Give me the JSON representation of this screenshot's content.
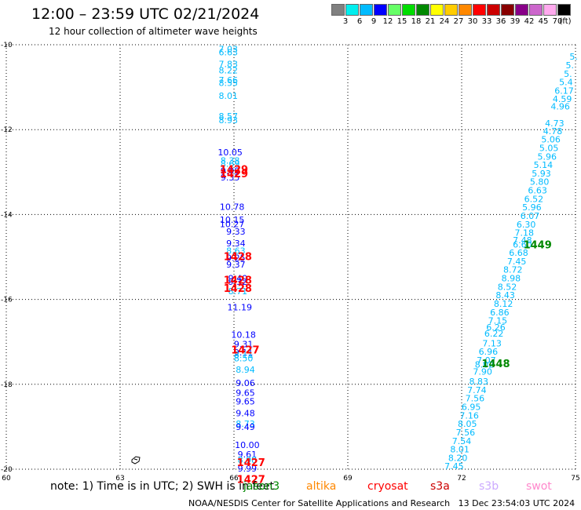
{
  "header": {
    "title": "12:00 – 23:59 UTC 02/21/2024",
    "subtitle": "12 hour collection of altimeter wave heights"
  },
  "color_scale": {
    "labels": [
      "3",
      "6",
      "9",
      "12",
      "15",
      "18",
      "21",
      "24",
      "27",
      "30",
      "33",
      "36",
      "39",
      "42",
      "45",
      "70",
      "(ft)"
    ],
    "colors": [
      "#808080",
      "#00eeee",
      "#00bbff",
      "#0000ff",
      "#66ff66",
      "#00dd00",
      "#008800",
      "#ffff00",
      "#ffcc00",
      "#ff8800",
      "#ff0000",
      "#cc0000",
      "#880000",
      "#880088",
      "#cc66cc",
      "#ffaaee",
      "#000000"
    ]
  },
  "map": {
    "lon_ticks": [
      "60",
      "63",
      "66",
      "69",
      "72",
      "75"
    ],
    "lat_ticks": [
      "-10",
      "-12",
      "-14",
      "-16",
      "-18",
      "-20"
    ],
    "grid_lines_visible": true
  },
  "track_west": [
    {
      "lat": -10.1,
      "lon": 65.85,
      "v": "7.03",
      "c": "#00bbff"
    },
    {
      "lat": -10.18,
      "lon": 65.85,
      "v": "6.63",
      "c": "#00bbff"
    },
    {
      "lat": -10.45,
      "lon": 65.85,
      "v": "7.83",
      "c": "#00bbff"
    },
    {
      "lat": -10.6,
      "lon": 65.85,
      "v": "8.22",
      "c": "#00bbff"
    },
    {
      "lat": -10.83,
      "lon": 65.85,
      "v": "7.66",
      "c": "#00bbff"
    },
    {
      "lat": -10.9,
      "lon": 65.85,
      "v": "8.55",
      "c": "#00bbff"
    },
    {
      "lat": -11.2,
      "lon": 65.85,
      "v": "8.01",
      "c": "#00bbff"
    },
    {
      "lat": -11.68,
      "lon": 65.85,
      "v": "8.57",
      "c": "#00bbff"
    },
    {
      "lat": -11.77,
      "lon": 65.85,
      "v": "8.93",
      "c": "#00bbff"
    },
    {
      "lat": -12.53,
      "lon": 65.9,
      "v": "10.05",
      "c": "#0000ff"
    },
    {
      "lat": -12.73,
      "lon": 65.9,
      "v": "8.38",
      "c": "#00bbff"
    },
    {
      "lat": -12.8,
      "lon": 65.9,
      "v": "8.69",
      "c": "#00bbff"
    },
    {
      "lat": -12.97,
      "lon": 65.9,
      "v": "9.09",
      "c": "#0000ff"
    },
    {
      "lat": -13.12,
      "lon": 65.9,
      "v": "9.35",
      "c": "#0000ff"
    },
    {
      "lat": -13.82,
      "lon": 65.95,
      "v": "10.78",
      "c": "#0000ff"
    },
    {
      "lat": -14.12,
      "lon": 65.95,
      "v": "10.15",
      "c": "#0000ff"
    },
    {
      "lat": -14.22,
      "lon": 65.95,
      "v": "10.27",
      "c": "#0000ff"
    },
    {
      "lat": -14.4,
      "lon": 66.05,
      "v": "9.33",
      "c": "#0000ff"
    },
    {
      "lat": -14.68,
      "lon": 66.05,
      "v": "9.34",
      "c": "#0000ff"
    },
    {
      "lat": -14.85,
      "lon": 66.05,
      "v": "8.63",
      "c": "#00bbff"
    },
    {
      "lat": -15.02,
      "lon": 66.05,
      "v": "9.25",
      "c": "#0000ff"
    },
    {
      "lat": -15.18,
      "lon": 66.05,
      "v": "9.37",
      "c": "#0000ff"
    },
    {
      "lat": -15.5,
      "lon": 66.1,
      "v": "9.40",
      "c": "#0000ff"
    },
    {
      "lat": -15.58,
      "lon": 66.1,
      "v": "9.32",
      "c": "#0000ff"
    },
    {
      "lat": -15.8,
      "lon": 66.1,
      "v": "8.71",
      "c": "#00bbff"
    },
    {
      "lat": -16.18,
      "lon": 66.15,
      "v": "11.19",
      "c": "#0000ff"
    },
    {
      "lat": -16.83,
      "lon": 66.25,
      "v": "10.18",
      "c": "#0000ff"
    },
    {
      "lat": -17.05,
      "lon": 66.25,
      "v": "9.31",
      "c": "#0000ff"
    },
    {
      "lat": -17.25,
      "lon": 66.25,
      "v": "9.11",
      "c": "#0000ff"
    },
    {
      "lat": -17.3,
      "lon": 66.25,
      "v": "8.11",
      "c": "#00bbff"
    },
    {
      "lat": -17.38,
      "lon": 66.25,
      "v": "8.50",
      "c": "#00bbff"
    },
    {
      "lat": -17.65,
      "lon": 66.3,
      "v": "8.94",
      "c": "#00bbff"
    },
    {
      "lat": -17.97,
      "lon": 66.3,
      "v": "9.06",
      "c": "#0000ff"
    },
    {
      "lat": -18.2,
      "lon": 66.3,
      "v": "9.65",
      "c": "#0000ff"
    },
    {
      "lat": -18.4,
      "lon": 66.3,
      "v": "9.65",
      "c": "#0000ff"
    },
    {
      "lat": -18.68,
      "lon": 66.3,
      "v": "9.48",
      "c": "#0000ff"
    },
    {
      "lat": -18.93,
      "lon": 66.3,
      "v": "8.73",
      "c": "#00bbff"
    },
    {
      "lat": -19.0,
      "lon": 66.3,
      "v": "9.49",
      "c": "#0000ff"
    },
    {
      "lat": -19.43,
      "lon": 66.35,
      "v": "10.00",
      "c": "#0000ff"
    },
    {
      "lat": -19.65,
      "lon": 66.35,
      "v": "9.61",
      "c": "#0000ff"
    },
    {
      "lat": -19.78,
      "lon": 66.35,
      "v": "8.98",
      "c": "#00bbff"
    },
    {
      "lat": -19.98,
      "lon": 66.35,
      "v": "9.99",
      "c": "#0000ff"
    }
  ],
  "track_east": [
    {
      "lat": -10.28,
      "lon": 74.95,
      "v": "5.",
      "c": "#00bbff"
    },
    {
      "lat": -10.48,
      "lon": 74.85,
      "v": "5.",
      "c": "#00bbff"
    },
    {
      "lat": -10.68,
      "lon": 74.8,
      "v": "5.",
      "c": "#00bbff"
    },
    {
      "lat": -10.88,
      "lon": 74.75,
      "v": "5.4",
      "c": "#00bbff"
    },
    {
      "lat": -11.08,
      "lon": 74.7,
      "v": "6.17",
      "c": "#00bbff"
    },
    {
      "lat": -11.28,
      "lon": 74.65,
      "v": "4.59",
      "c": "#00bbff"
    },
    {
      "lat": -11.45,
      "lon": 74.6,
      "v": "4.96",
      "c": "#00bbff"
    },
    {
      "lat": -11.85,
      "lon": 74.45,
      "v": "4.73",
      "c": "#00bbff"
    },
    {
      "lat": -12.03,
      "lon": 74.4,
      "v": "4.78",
      "c": "#00bbff"
    },
    {
      "lat": -12.23,
      "lon": 74.35,
      "v": "5.06",
      "c": "#00bbff"
    },
    {
      "lat": -12.43,
      "lon": 74.3,
      "v": "5.05",
      "c": "#00bbff"
    },
    {
      "lat": -12.63,
      "lon": 74.25,
      "v": "5.96",
      "c": "#00bbff"
    },
    {
      "lat": -12.83,
      "lon": 74.15,
      "v": "5.14",
      "c": "#00bbff"
    },
    {
      "lat": -13.03,
      "lon": 74.1,
      "v": "5.93",
      "c": "#00bbff"
    },
    {
      "lat": -13.23,
      "lon": 74.05,
      "v": "5.80",
      "c": "#00bbff"
    },
    {
      "lat": -13.43,
      "lon": 74.0,
      "v": "6.63",
      "c": "#00bbff"
    },
    {
      "lat": -13.63,
      "lon": 73.9,
      "v": "6.52",
      "c": "#00bbff"
    },
    {
      "lat": -13.83,
      "lon": 73.85,
      "v": "5.96",
      "c": "#00bbff"
    },
    {
      "lat": -14.03,
      "lon": 73.8,
      "v": "6.07",
      "c": "#00bbff"
    },
    {
      "lat": -14.23,
      "lon": 73.7,
      "v": "6.30",
      "c": "#00bbff"
    },
    {
      "lat": -14.43,
      "lon": 73.65,
      "v": "7.18",
      "c": "#00bbff"
    },
    {
      "lat": -14.6,
      "lon": 73.6,
      "v": "7.48",
      "c": "#00bbff"
    },
    {
      "lat": -14.7,
      "lon": 73.6,
      "v": "6.60",
      "c": "#00bbff"
    },
    {
      "lat": -14.9,
      "lon": 73.5,
      "v": "6.68",
      "c": "#00bbff"
    },
    {
      "lat": -15.1,
      "lon": 73.45,
      "v": "7.45",
      "c": "#00bbff"
    },
    {
      "lat": -15.3,
      "lon": 73.35,
      "v": "8.72",
      "c": "#00bbff"
    },
    {
      "lat": -15.5,
      "lon": 73.3,
      "v": "8.98",
      "c": "#00bbff"
    },
    {
      "lat": -15.7,
      "lon": 73.2,
      "v": "8.52",
      "c": "#00bbff"
    },
    {
      "lat": -15.9,
      "lon": 73.15,
      "v": "8.43",
      "c": "#00bbff"
    },
    {
      "lat": -16.1,
      "lon": 73.1,
      "v": "8.12",
      "c": "#00bbff"
    },
    {
      "lat": -16.3,
      "lon": 73.0,
      "v": "6.86",
      "c": "#00bbff"
    },
    {
      "lat": -16.5,
      "lon": 72.95,
      "v": "7.15",
      "c": "#00bbff"
    },
    {
      "lat": -16.65,
      "lon": 72.9,
      "v": "6.26",
      "c": "#00bbff"
    },
    {
      "lat": -16.8,
      "lon": 72.85,
      "v": "6.22",
      "c": "#00bbff"
    },
    {
      "lat": -17.03,
      "lon": 72.8,
      "v": "7.13",
      "c": "#00bbff"
    },
    {
      "lat": -17.23,
      "lon": 72.7,
      "v": "6.96",
      "c": "#00bbff"
    },
    {
      "lat": -17.43,
      "lon": 72.65,
      "v": "7.07",
      "c": "#00bbff"
    },
    {
      "lat": -17.53,
      "lon": 72.6,
      "v": "8.02",
      "c": "#00bbff"
    },
    {
      "lat": -17.7,
      "lon": 72.55,
      "v": "7.90",
      "c": "#00bbff"
    },
    {
      "lat": -17.93,
      "lon": 72.45,
      "v": "8.83",
      "c": "#00bbff"
    },
    {
      "lat": -18.13,
      "lon": 72.4,
      "v": "7.74",
      "c": "#00bbff"
    },
    {
      "lat": -18.33,
      "lon": 72.35,
      "v": "7.56",
      "c": "#00bbff"
    },
    {
      "lat": -18.53,
      "lon": 72.25,
      "v": "6.95",
      "c": "#00bbff"
    },
    {
      "lat": -18.73,
      "lon": 72.2,
      "v": "7.16",
      "c": "#00bbff"
    },
    {
      "lat": -18.93,
      "lon": 72.15,
      "v": "8.05",
      "c": "#00bbff"
    },
    {
      "lat": -19.13,
      "lon": 72.1,
      "v": "7.56",
      "c": "#00bbff"
    },
    {
      "lat": -19.33,
      "lon": 72.0,
      "v": "7.54",
      "c": "#00bbff"
    },
    {
      "lat": -19.53,
      "lon": 71.95,
      "v": "8.01",
      "c": "#00bbff"
    },
    {
      "lat": -19.73,
      "lon": 71.9,
      "v": "8.20",
      "c": "#00bbff"
    },
    {
      "lat": -19.93,
      "lon": 71.8,
      "v": "7.45",
      "c": "#00bbff"
    }
  ],
  "time_labels": [
    {
      "lat": -12.95,
      "lon": 66.0,
      "v": "1429",
      "c": "#ff0000"
    },
    {
      "lat": -13.05,
      "lon": 66.0,
      "v": "1429",
      "c": "#ff0000"
    },
    {
      "lat": -15.0,
      "lon": 66.1,
      "v": "1428",
      "c": "#ff0000"
    },
    {
      "lat": -15.55,
      "lon": 66.1,
      "v": "1428",
      "c": "#ff0000"
    },
    {
      "lat": -15.75,
      "lon": 66.1,
      "v": "1428",
      "c": "#ff0000"
    },
    {
      "lat": -17.2,
      "lon": 66.3,
      "v": "1427",
      "c": "#ff0000"
    },
    {
      "lat": -19.85,
      "lon": 66.45,
      "v": "1427",
      "c": "#ff0000"
    },
    {
      "lat": -20.25,
      "lon": 66.45,
      "v": "1427",
      "c": "#ff0000"
    },
    {
      "lat": -14.72,
      "lon": 74.0,
      "v": "1449",
      "c": "#008800"
    },
    {
      "lat": -17.52,
      "lon": 72.9,
      "v": "1448",
      "c": "#008800"
    }
  ],
  "note": {
    "prefix": "note: 1) Time is in UTC; 2) SWH is in feet",
    "satellites": [
      {
        "name": "jason3",
        "color": "#008800"
      },
      {
        "name": "altika",
        "color": "#ff8800"
      },
      {
        "name": "cryosat",
        "color": "#ff0000"
      },
      {
        "name": "s3a",
        "color": "#cc0000"
      },
      {
        "name": "s3b",
        "color": "#ccaaff"
      },
      {
        "name": "swot",
        "color": "#ff88cc"
      }
    ]
  },
  "footer": "NOAA/NESDIS Center for Satellite Applications and Research   13 Dec 23:54:03 UTC 2024"
}
